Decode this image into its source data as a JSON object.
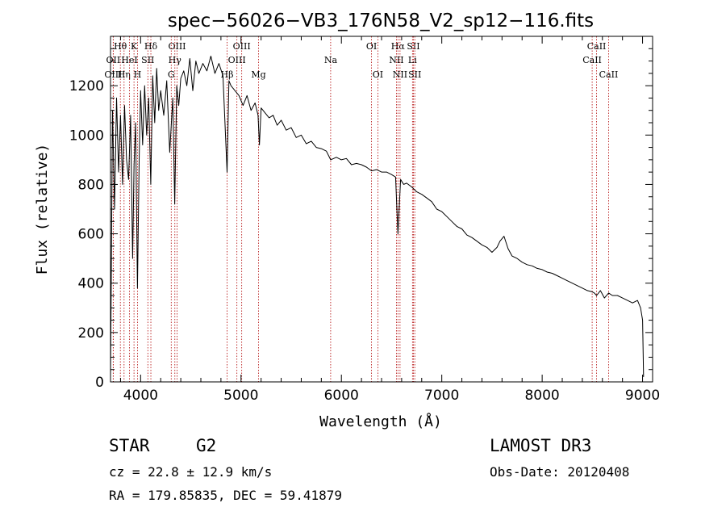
{
  "chart_data": {
    "type": "line",
    "title": "spec−56026−VB3_176N58_V2_sp12−116.fits",
    "xlabel": "Wavelength (Å)",
    "ylabel": "Flux (relative)",
    "xlim": [
      3700,
      9100
    ],
    "ylim": [
      0,
      1400
    ],
    "xticks": [
      4000,
      5000,
      6000,
      7000,
      8000,
      9000
    ],
    "xtick_labels": [
      "4000",
      "5000",
      "6000",
      "7000",
      "8000",
      "9000"
    ],
    "yticks": [
      0,
      200,
      400,
      600,
      800,
      1000,
      1200
    ],
    "ytick_labels": [
      "0",
      "200",
      "400",
      "600",
      "800",
      "1000",
      "1200"
    ],
    "series": [
      {
        "name": "flux",
        "color": "#000000",
        "x": [
          3700,
          3720,
          3740,
          3760,
          3780,
          3800,
          3820,
          3840,
          3860,
          3880,
          3900,
          3920,
          3935,
          3950,
          3968,
          3985,
          4000,
          4020,
          4040,
          4060,
          4080,
          4101,
          4120,
          4140,
          4160,
          4180,
          4200,
          4230,
          4260,
          4290,
          4320,
          4340,
          4360,
          4380,
          4400,
          4430,
          4460,
          4490,
          4520,
          4550,
          4580,
          4620,
          4660,
          4700,
          4740,
          4780,
          4820,
          4861,
          4880,
          4900,
          4940,
          4980,
          5020,
          5060,
          5100,
          5140,
          5170,
          5183,
          5200,
          5240,
          5280,
          5320,
          5360,
          5400,
          5450,
          5500,
          5550,
          5600,
          5650,
          5700,
          5750,
          5800,
          5850,
          5893,
          5950,
          6000,
          6050,
          6100,
          6150,
          6200,
          6250,
          6300,
          6350,
          6400,
          6450,
          6500,
          6540,
          6563,
          6590,
          6620,
          6650,
          6700,
          6750,
          6800,
          6850,
          6900,
          6950,
          7000,
          7050,
          7100,
          7150,
          7200,
          7250,
          7300,
          7350,
          7400,
          7450,
          7500,
          7550,
          7580,
          7620,
          7660,
          7700,
          7750,
          7800,
          7850,
          7900,
          7950,
          8000,
          8050,
          8100,
          8150,
          8200,
          8250,
          8300,
          8350,
          8400,
          8450,
          8498,
          8520,
          8542,
          8580,
          8620,
          8662,
          8700,
          8750,
          8800,
          8850,
          8900,
          8950,
          8980,
          9000,
          9010
        ],
        "values": [
          20,
          1100,
          700,
          1150,
          850,
          1080,
          800,
          1120,
          900,
          820,
          1080,
          500,
          880,
          1050,
          380,
          900,
          1180,
          960,
          1200,
          1000,
          1150,
          800,
          1240,
          1050,
          1270,
          1100,
          1180,
          1080,
          1220,
          930,
          1150,
          720,
          1200,
          1120,
          1230,
          1260,
          1200,
          1310,
          1180,
          1300,
          1250,
          1290,
          1260,
          1320,
          1250,
          1290,
          1240,
          850,
          1220,
          1200,
          1180,
          1160,
          1120,
          1160,
          1100,
          1130,
          1080,
          960,
          1110,
          1090,
          1070,
          1080,
          1040,
          1060,
          1020,
          1030,
          990,
          1000,
          965,
          975,
          950,
          945,
          935,
          900,
          910,
          900,
          905,
          880,
          885,
          880,
          870,
          855,
          860,
          850,
          850,
          840,
          830,
          600,
          820,
          800,
          805,
          790,
          770,
          760,
          745,
          730,
          700,
          690,
          670,
          650,
          630,
          620,
          595,
          585,
          570,
          555,
          545,
          525,
          545,
          570,
          590,
          540,
          510,
          500,
          485,
          475,
          470,
          460,
          455,
          445,
          440,
          430,
          420,
          410,
          400,
          390,
          380,
          370,
          365,
          360,
          350,
          370,
          340,
          360,
          350,
          350,
          340,
          330,
          320,
          330,
          300,
          250,
          20
        ]
      }
    ],
    "lines": [
      {
        "label": "Hθ",
        "wavelength": 3798,
        "row": 0
      },
      {
        "label": "OII",
        "wavelength": 3727,
        "row": 1
      },
      {
        "label": "OIII",
        "wavelength": 3727,
        "row": 2
      },
      {
        "label": "Hη",
        "wavelength": 3835,
        "row": 2
      },
      {
        "label": "K",
        "wavelength": 3934,
        "row": 0
      },
      {
        "label": "HeI",
        "wavelength": 3889,
        "row": 1
      },
      {
        "label": "Hδ",
        "wavelength": 4102,
        "row": 0
      },
      {
        "label": "SII",
        "wavelength": 4072,
        "row": 1
      },
      {
        "label": "H",
        "wavelength": 3969,
        "row": 2
      },
      {
        "label": "OIII",
        "wavelength": 4363,
        "row": 0
      },
      {
        "label": "Hγ",
        "wavelength": 4341,
        "row": 1
      },
      {
        "label": "G",
        "wavelength": 4305,
        "row": 2
      },
      {
        "label": "OIII",
        "wavelength": 5007,
        "row": 0
      },
      {
        "label": "OIII",
        "wavelength": 4959,
        "row": 1
      },
      {
        "label": "Hβ",
        "wavelength": 4861,
        "row": 2
      },
      {
        "label": "Mg",
        "wavelength": 5175,
        "row": 2
      },
      {
        "label": "Na",
        "wavelength": 5893,
        "row": 1
      },
      {
        "label": "OI",
        "wavelength": 6300,
        "row": 0
      },
      {
        "label": "OI",
        "wavelength": 6363,
        "row": 2
      },
      {
        "label": "Hα",
        "wavelength": 6563,
        "row": 0
      },
      {
        "label": "SII",
        "wavelength": 6717,
        "row": 0
      },
      {
        "label": "NII",
        "wavelength": 6548,
        "row": 1
      },
      {
        "label": "Li",
        "wavelength": 6708,
        "row": 1
      },
      {
        "label": "NII",
        "wavelength": 6584,
        "row": 2
      },
      {
        "label": "SII",
        "wavelength": 6731,
        "row": 2
      },
      {
        "label": "CaII",
        "wavelength": 8542,
        "row": 0
      },
      {
        "label": "CaII",
        "wavelength": 8498,
        "row": 1
      },
      {
        "label": "CaII",
        "wavelength": 8662,
        "row": 2
      }
    ],
    "line_color": "#b00000"
  },
  "info": {
    "object_class": "STAR",
    "subclass": "G2",
    "velocity": "cz = 22.8 ± 12.9 km/s",
    "coords": "RA = 179.85835, DEC =  59.41879",
    "survey": "LAMOST DR3",
    "obs_date": "Obs-Date: 20120408"
  }
}
